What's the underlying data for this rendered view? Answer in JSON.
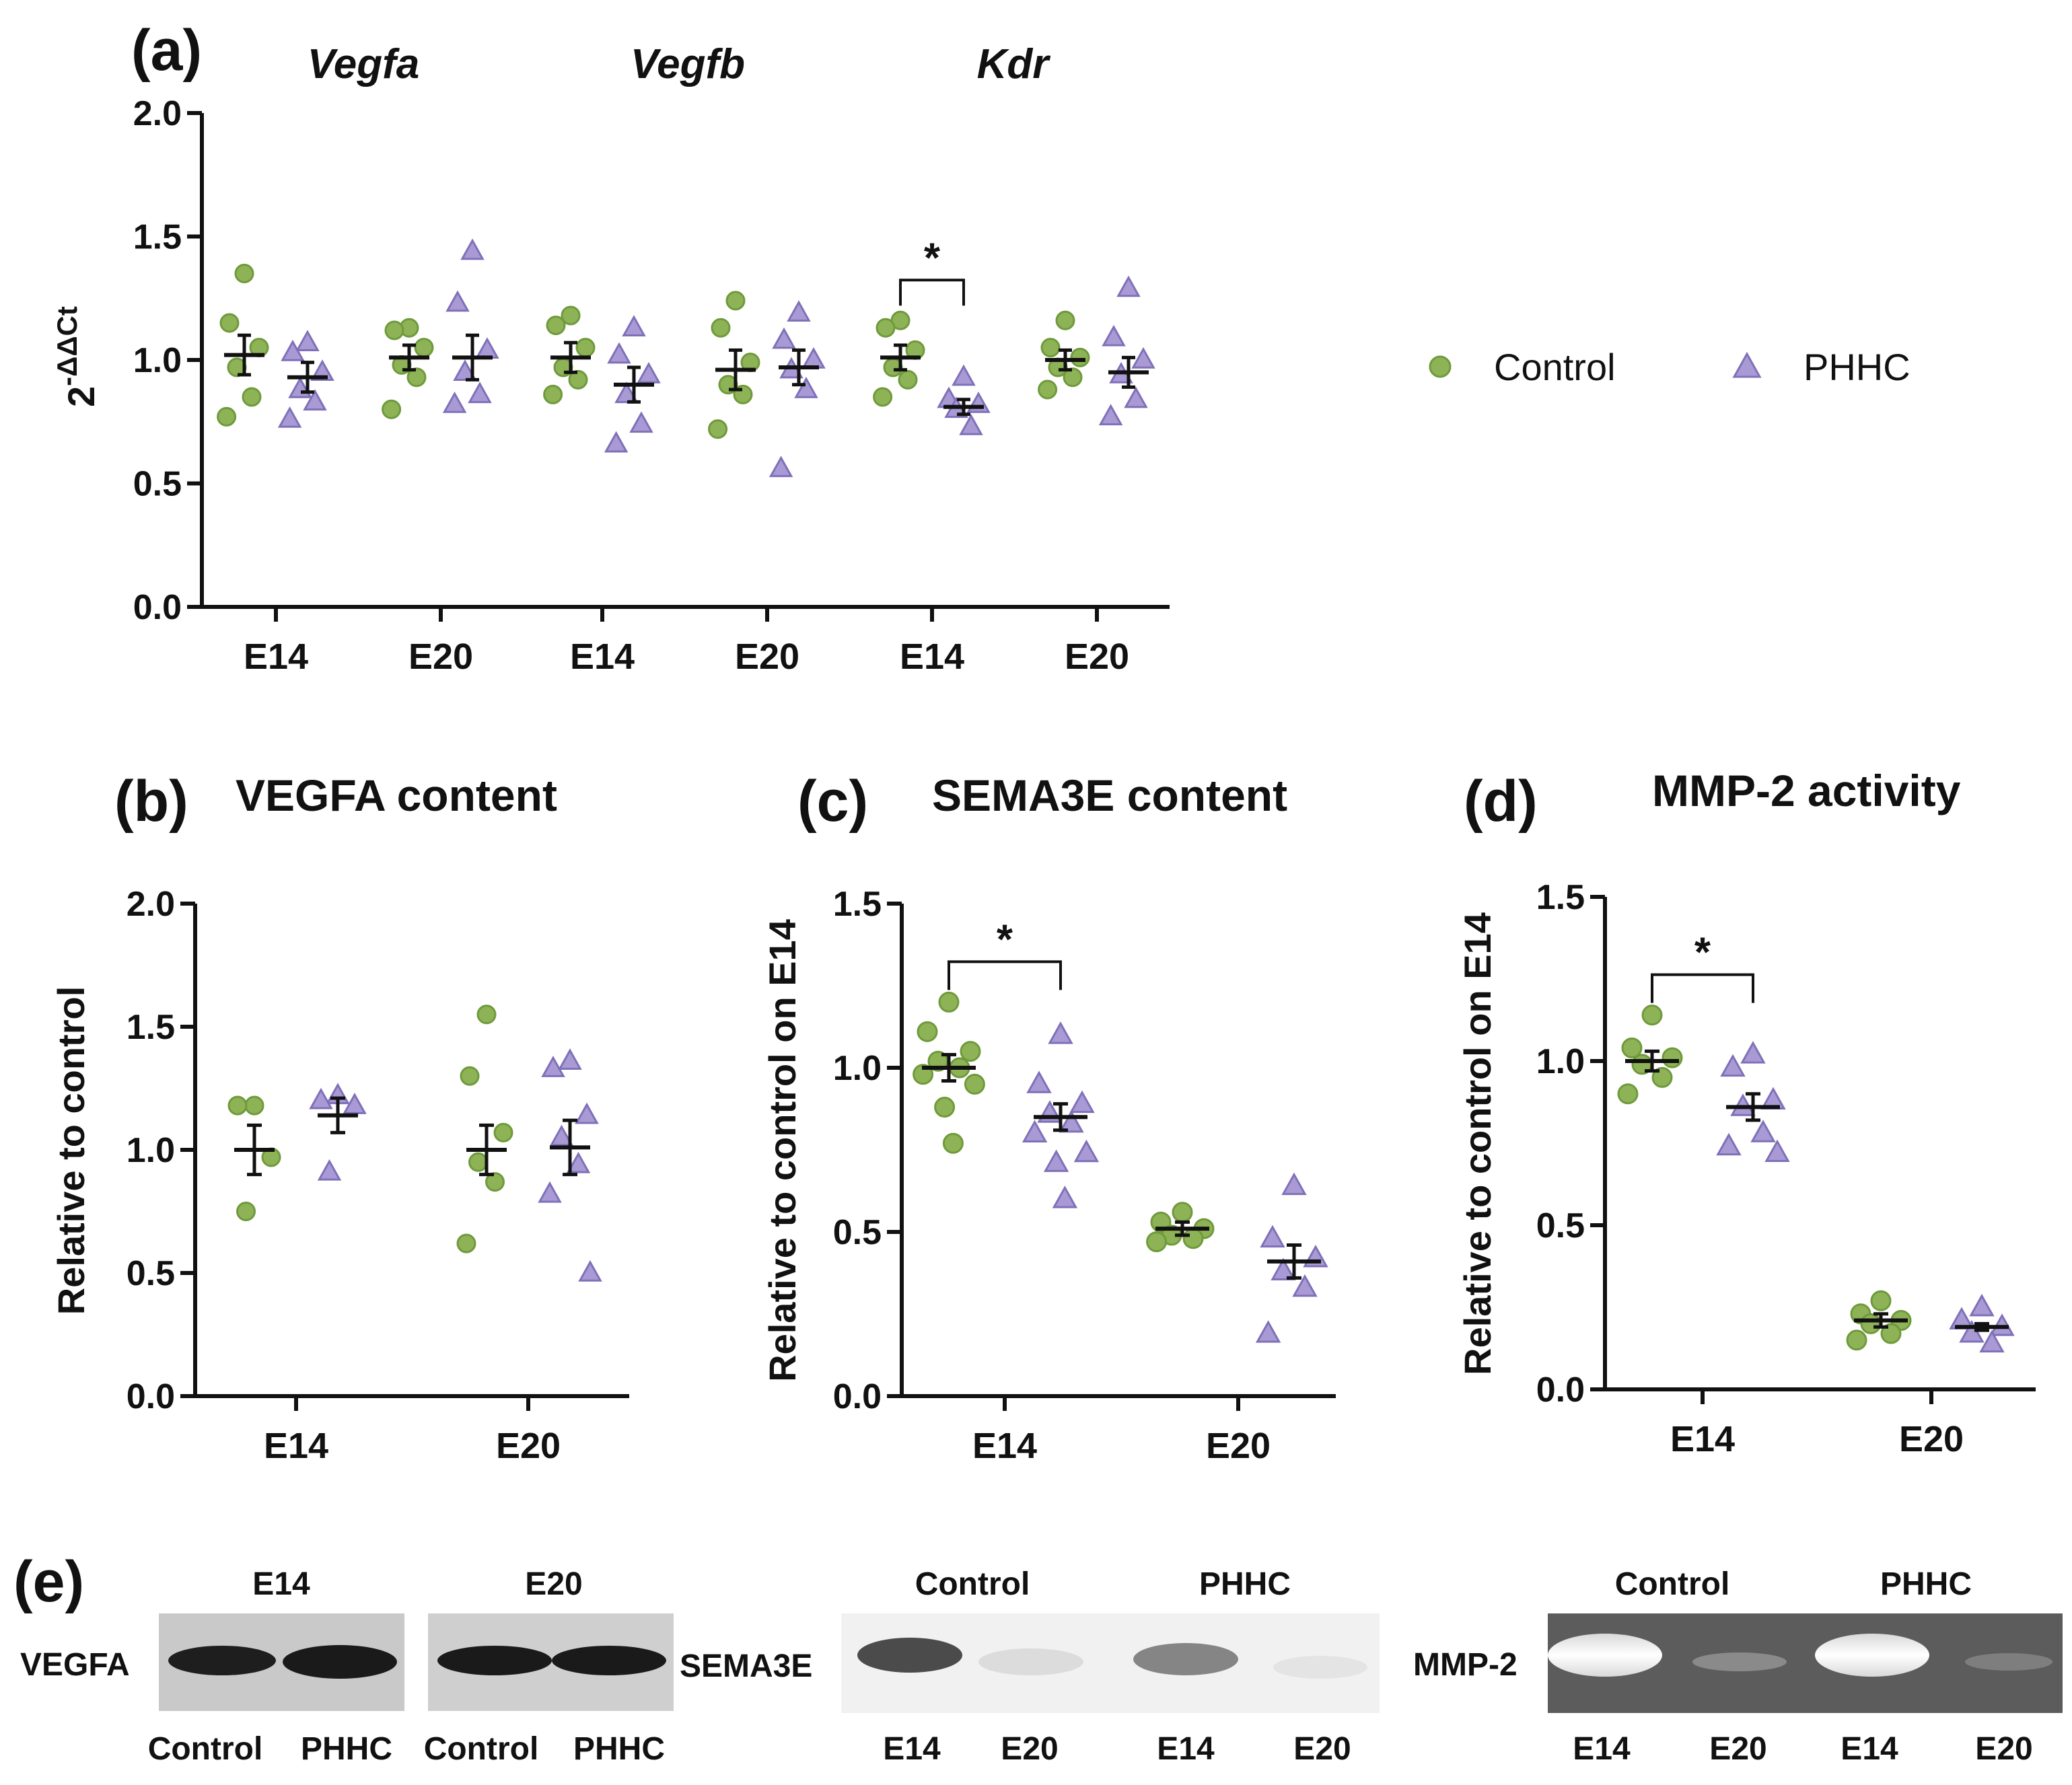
{
  "colors": {
    "control": "#8db356",
    "phhc": "#a99ad6",
    "axis": "#111111"
  },
  "legend": {
    "control": "Control",
    "phhc": "PHHC"
  },
  "panel_a": {
    "label": "(a)",
    "genes": [
      "Vegfa",
      "Vegfb",
      "Kdr"
    ],
    "y_label_base": "2",
    "y_label_sup": "-ΔΔCt",
    "significance": "*"
  },
  "panel_b": {
    "label": "(b)",
    "title": "VEGFA content",
    "y_label": "Relative to control"
  },
  "panel_c": {
    "label": "(c)",
    "title": "SEMA3E content",
    "y_label": "Relative to control on E14",
    "significance": "*"
  },
  "panel_d": {
    "label": "(d)",
    "title": "MMP-2 activity",
    "y_label": "Relative to control on E14",
    "significance": "*"
  },
  "panel_e": {
    "label": "(e)",
    "vegfa": {
      "name": "VEGFA",
      "top": [
        "E14",
        "E20"
      ],
      "bottom": [
        "Control",
        "PHHC",
        "Control",
        "PHHC"
      ]
    },
    "sema3e": {
      "name": "SEMA3E",
      "top": [
        "Control",
        "PHHC"
      ],
      "bottom": [
        "E14",
        "E20",
        "E14",
        "E20"
      ]
    },
    "mmp2": {
      "name": "MMP-2",
      "top": [
        "Control",
        "PHHC"
      ],
      "bottom": [
        "E14",
        "E20",
        "E14",
        "E20"
      ]
    }
  },
  "chart_data": [
    {
      "id": "a",
      "type": "scatter",
      "title": "",
      "ylabel": "2^-ΔΔCt",
      "ylim": [
        0,
        2.0
      ],
      "yticks": [
        "0.0",
        "0.5",
        "1.0",
        "1.5",
        "2.0"
      ],
      "groups": [
        "Vegfa",
        "Vegfa",
        "Vegfb",
        "Vegfb",
        "Kdr",
        "Kdr"
      ],
      "categories": [
        "E14",
        "E20",
        "E14",
        "E20",
        "E14",
        "E20"
      ],
      "series": [
        {
          "name": "Control",
          "marker": "circle",
          "mean": [
            1.02,
            1.01,
            1.01,
            0.96,
            1.01,
            1.0
          ],
          "sem": [
            0.08,
            0.05,
            0.06,
            0.08,
            0.05,
            0.04
          ],
          "points": [
            [
              1.35,
              1.15,
              1.05,
              0.97,
              0.85,
              0.77
            ],
            [
              1.13,
              1.12,
              1.05,
              0.98,
              0.93,
              0.8
            ],
            [
              1.18,
              1.14,
              1.05,
              0.97,
              0.92,
              0.86
            ],
            [
              1.24,
              1.13,
              0.99,
              0.9,
              0.86,
              0.72
            ],
            [
              1.16,
              1.13,
              1.04,
              0.97,
              0.92,
              0.85
            ],
            [
              1.16,
              1.05,
              1.01,
              0.97,
              0.93,
              0.88
            ]
          ]
        },
        {
          "name": "PHHC",
          "marker": "triangle",
          "mean": [
            0.93,
            1.01,
            0.9,
            0.97,
            0.81,
            0.95
          ],
          "sem": [
            0.06,
            0.09,
            0.07,
            0.07,
            0.03,
            0.06
          ],
          "points": [
            [
              1.07,
              1.03,
              0.95,
              0.88,
              0.83,
              0.76
            ],
            [
              1.44,
              1.23,
              1.04,
              0.95,
              0.86,
              0.82
            ],
            [
              1.13,
              1.02,
              0.94,
              0.86,
              0.74,
              0.66
            ],
            [
              1.19,
              1.08,
              1.0,
              0.96,
              0.88,
              0.56
            ],
            [
              0.93,
              0.84,
              0.82,
              0.8,
              0.73
            ],
            [
              1.29,
              1.09,
              1.0,
              0.94,
              0.84,
              0.77
            ]
          ]
        }
      ],
      "significance": [
        {
          "category_index": 4,
          "label": "*"
        }
      ]
    },
    {
      "id": "b",
      "type": "scatter",
      "title": "VEGFA content",
      "ylabel": "Relative to control",
      "ylim": [
        0,
        2.0
      ],
      "yticks": [
        "0.0",
        "0.5",
        "1.0",
        "1.5",
        "2.0"
      ],
      "categories": [
        "E14",
        "E20"
      ],
      "series": [
        {
          "name": "Control",
          "marker": "circle",
          "mean": [
            1.0,
            1.0
          ],
          "sem": [
            0.1,
            0.1
          ],
          "points": [
            [
              1.18,
              1.18,
              0.97,
              0.75
            ],
            [
              1.55,
              1.3,
              1.07,
              0.95,
              0.87,
              0.62
            ]
          ]
        },
        {
          "name": "PHHC",
          "marker": "triangle",
          "mean": [
            1.14,
            1.01
          ],
          "sem": [
            0.07,
            0.11
          ],
          "points": [
            [
              1.22,
              1.2,
              1.18,
              0.91
            ],
            [
              1.36,
              1.33,
              1.14,
              1.05,
              0.94,
              0.82,
              0.5
            ]
          ]
        }
      ]
    },
    {
      "id": "c",
      "type": "scatter",
      "title": "SEMA3E content",
      "ylabel": "Relative to control on E14",
      "ylim": [
        0,
        1.5
      ],
      "yticks": [
        "0.0",
        "0.5",
        "1.0",
        "1.5"
      ],
      "categories": [
        "E14",
        "E20"
      ],
      "series": [
        {
          "name": "Control",
          "marker": "circle",
          "mean": [
            1.0,
            0.51
          ],
          "sem": [
            0.04,
            0.02
          ],
          "points": [
            [
              1.2,
              1.11,
              1.05,
              1.02,
              1.0,
              0.98,
              0.95,
              0.88,
              0.77
            ],
            [
              0.56,
              0.53,
              0.51,
              0.49,
              0.48,
              0.47
            ]
          ]
        },
        {
          "name": "PHHC",
          "marker": "triangle",
          "mean": [
            0.85,
            0.41
          ],
          "sem": [
            0.04,
            0.05
          ],
          "points": [
            [
              1.1,
              0.95,
              0.89,
              0.86,
              0.83,
              0.8,
              0.74,
              0.71,
              0.6
            ],
            [
              0.64,
              0.48,
              0.42,
              0.38,
              0.33,
              0.19
            ]
          ]
        }
      ],
      "significance": [
        {
          "category_index": 0,
          "label": "*"
        }
      ]
    },
    {
      "id": "d",
      "type": "scatter",
      "title": "MMP-2 activity",
      "ylabel": "Relative to control on E14",
      "ylim": [
        0,
        1.5
      ],
      "yticks": [
        "0.0",
        "0.5",
        "1.0",
        "1.5"
      ],
      "categories": [
        "E14",
        "E20"
      ],
      "series": [
        {
          "name": "Control",
          "marker": "circle",
          "mean": [
            1.0,
            0.21
          ],
          "sem": [
            0.03,
            0.02
          ],
          "points": [
            [
              1.14,
              1.04,
              1.01,
              0.99,
              0.95,
              0.9
            ],
            [
              0.27,
              0.23,
              0.21,
              0.2,
              0.17,
              0.15
            ]
          ]
        },
        {
          "name": "PHHC",
          "marker": "triangle",
          "mean": [
            0.86,
            0.19
          ],
          "sem": [
            0.04,
            0.01
          ],
          "points": [
            [
              1.02,
              0.98,
              0.88,
              0.86,
              0.78,
              0.74,
              0.72
            ],
            [
              0.25,
              0.21,
              0.19,
              0.17,
              0.14
            ]
          ]
        }
      ],
      "significance": [
        {
          "category_index": 0,
          "label": "*"
        }
      ]
    }
  ]
}
